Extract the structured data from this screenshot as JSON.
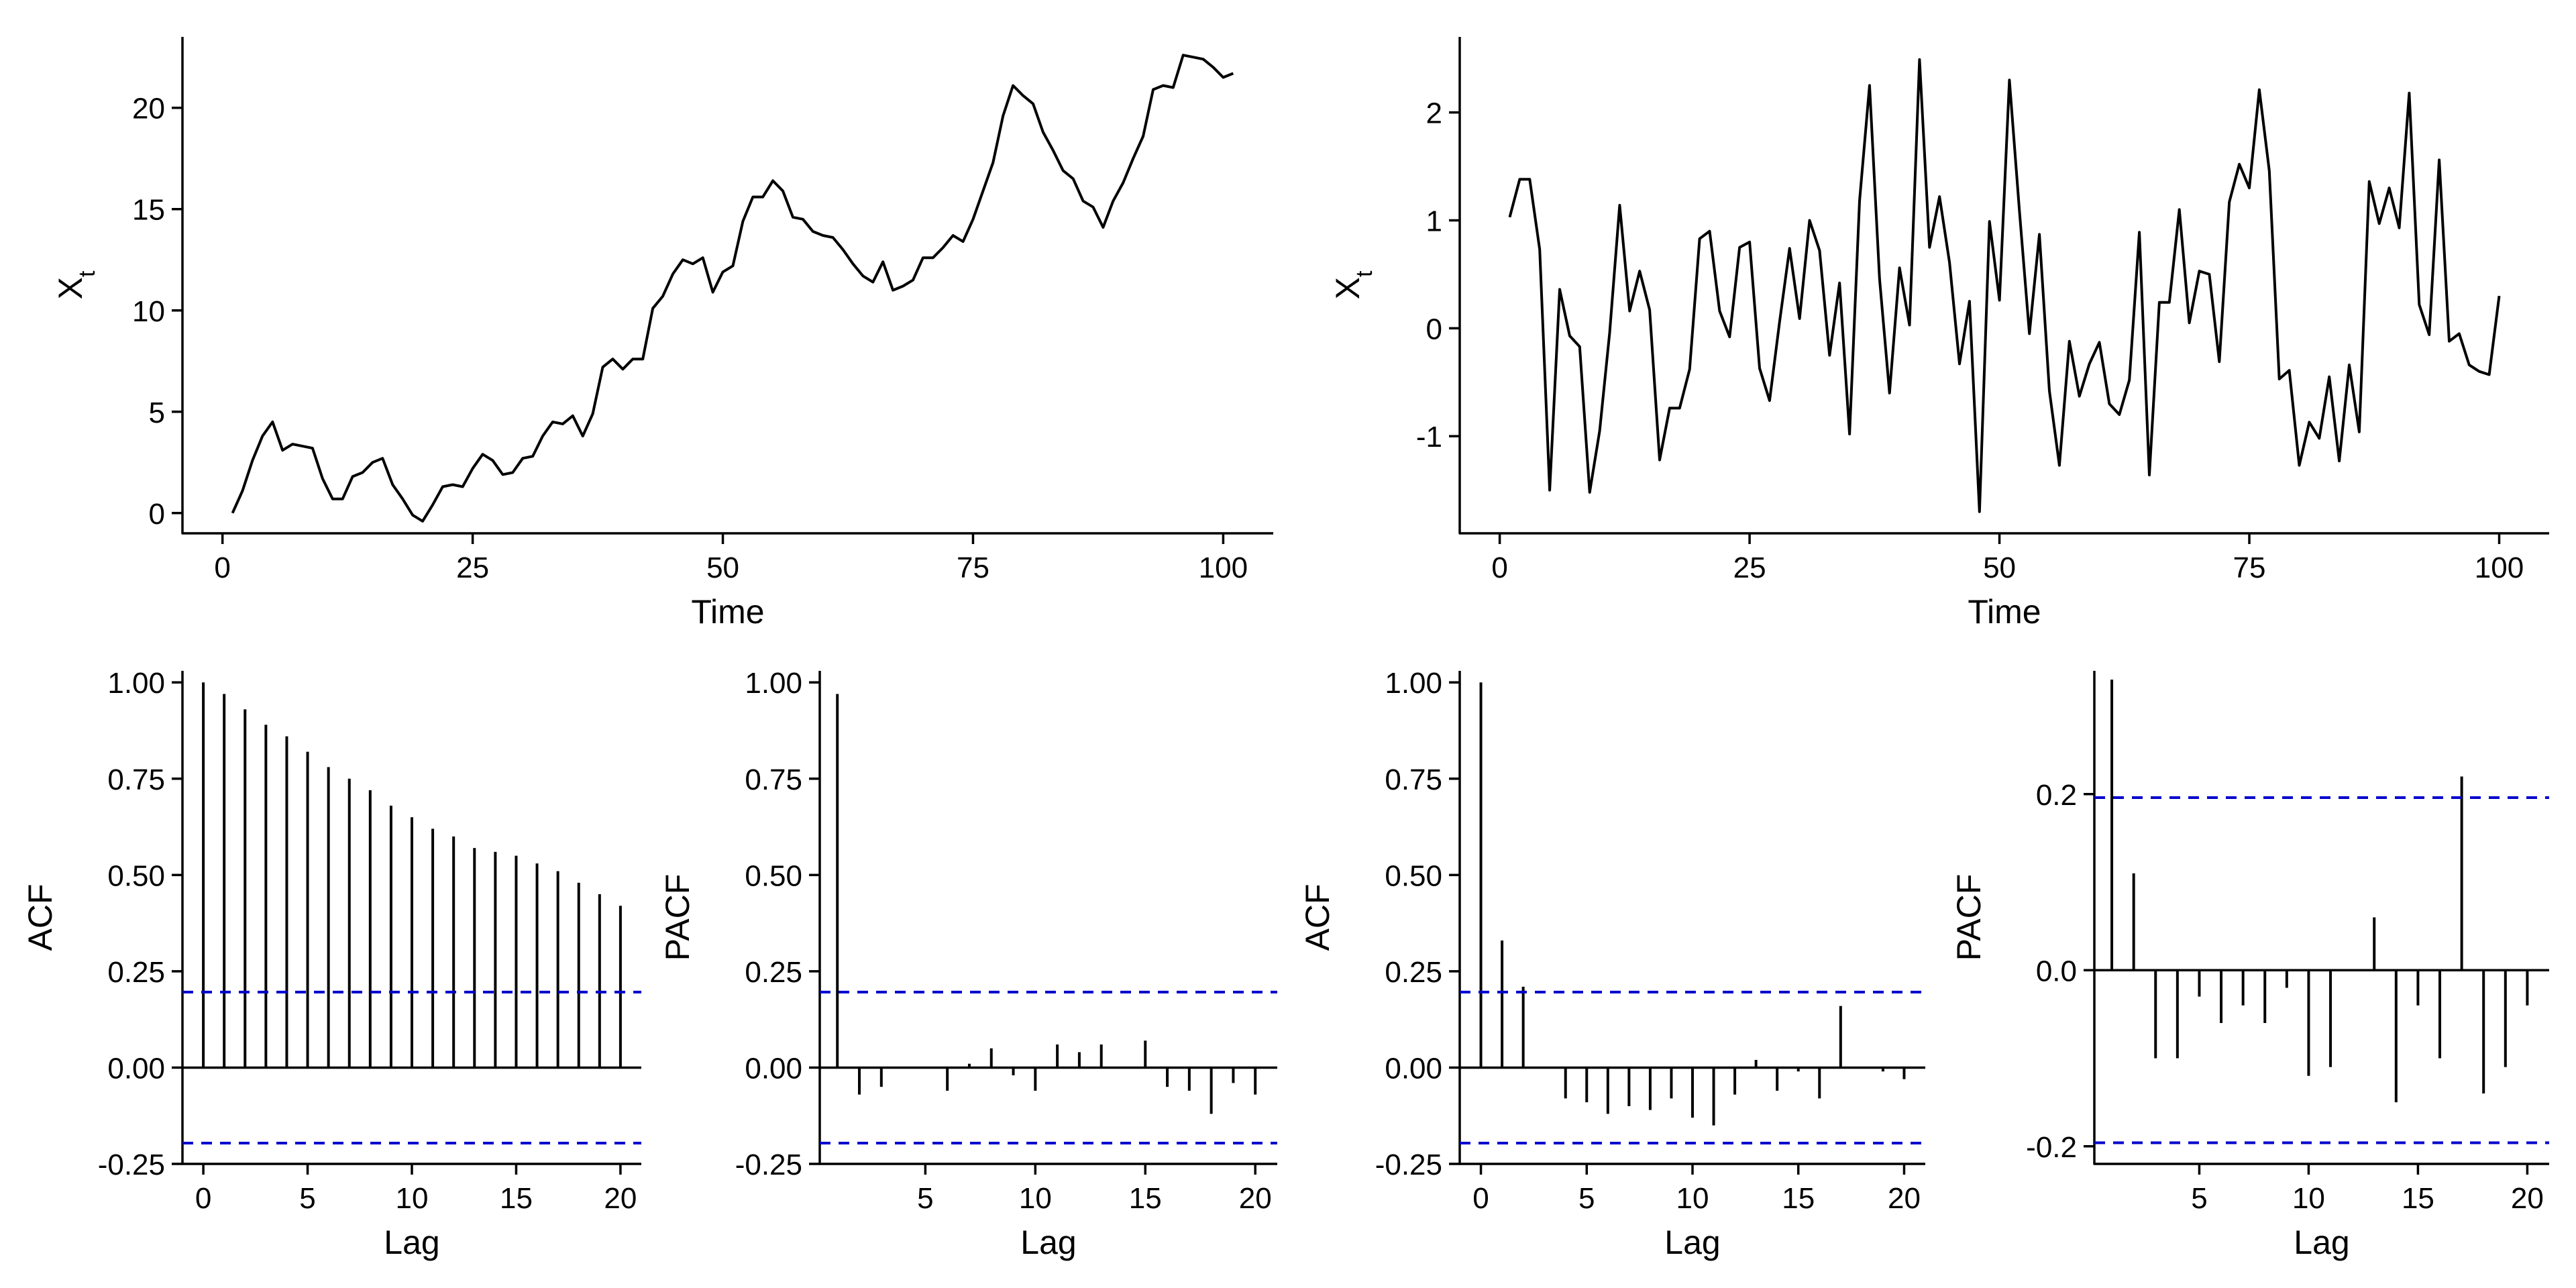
{
  "chart_data": [
    {
      "type": "line",
      "panel": "top-left",
      "xlabel": "Time",
      "ylabel": "X",
      "ylabel_sub": "t",
      "xlim": [
        -4,
        105
      ],
      "ylim": [
        -1,
        23.5
      ],
      "xticks": [
        0,
        25,
        50,
        75,
        100
      ],
      "yticks": [
        0,
        5,
        10,
        15,
        20
      ],
      "x": [
        1,
        2,
        3,
        4,
        5,
        6,
        7,
        8,
        9,
        10,
        11,
        12,
        13,
        14,
        15,
        16,
        17,
        18,
        19,
        20,
        21,
        22,
        23,
        24,
        25,
        26,
        27,
        28,
        29,
        30,
        31,
        32,
        33,
        34,
        35,
        36,
        37,
        38,
        39,
        40,
        41,
        42,
        43,
        44,
        45,
        46,
        47,
        48,
        49,
        50,
        51,
        52,
        53,
        54,
        55,
        56,
        57,
        58,
        59,
        60,
        61,
        62,
        63,
        64,
        65,
        66,
        67,
        68,
        69,
        70,
        71,
        72,
        73,
        74,
        75,
        76,
        77,
        78,
        79,
        80,
        81,
        82,
        83,
        84,
        85,
        86,
        87,
        88,
        89,
        90,
        91,
        92,
        93,
        94,
        95,
        96,
        97,
        98,
        99,
        100,
        101
      ],
      "y": [
        0.0,
        1.1,
        2.6,
        3.8,
        4.5,
        3.1,
        3.4,
        3.3,
        3.2,
        1.7,
        0.7,
        0.7,
        1.8,
        2.0,
        2.5,
        2.7,
        1.4,
        0.7,
        -0.1,
        -0.4,
        0.4,
        1.3,
        1.4,
        1.3,
        2.2,
        2.9,
        2.6,
        1.9,
        2.0,
        2.7,
        2.8,
        3.8,
        4.5,
        4.4,
        4.8,
        3.8,
        4.9,
        7.2,
        7.6,
        7.1,
        7.6,
        7.6,
        10.1,
        10.7,
        11.8,
        12.5,
        12.3,
        12.6,
        10.9,
        11.9,
        12.2,
        14.4,
        15.6,
        15.6,
        16.4,
        15.9,
        14.6,
        14.5,
        13.9,
        13.7,
        13.6,
        13.0,
        12.3,
        11.7,
        11.4,
        12.4,
        11.0,
        11.2,
        11.5,
        12.6,
        12.6,
        13.1,
        13.7,
        13.4,
        14.5,
        15.9,
        17.3,
        19.6,
        21.1,
        20.6,
        20.2,
        18.8,
        17.9,
        16.9,
        16.5,
        15.4,
        15.1,
        14.1,
        15.4,
        16.3,
        17.5,
        18.6,
        20.9,
        21.1,
        21.0,
        22.6,
        22.5,
        22.4,
        22.0,
        21.5,
        21.7
      ]
    },
    {
      "type": "line",
      "panel": "top-right",
      "xlabel": "Time",
      "ylabel": "X",
      "ylabel_sub": "t",
      "xlim": [
        -4,
        105
      ],
      "ylim": [
        -1.9,
        2.7
      ],
      "xticks": [
        0,
        25,
        50,
        75,
        100
      ],
      "yticks": [
        -1,
        0,
        1,
        2
      ],
      "x": [
        1,
        2,
        3,
        4,
        5,
        6,
        7,
        8,
        9,
        10,
        11,
        12,
        13,
        14,
        15,
        16,
        17,
        18,
        19,
        20,
        21,
        22,
        23,
        24,
        25,
        26,
        27,
        28,
        29,
        30,
        31,
        32,
        33,
        34,
        35,
        36,
        37,
        38,
        39,
        40,
        41,
        42,
        43,
        44,
        45,
        46,
        47,
        48,
        49,
        50,
        51,
        52,
        53,
        54,
        55,
        56,
        57,
        58,
        59,
        60,
        61,
        62,
        63,
        64,
        65,
        66,
        67,
        68,
        69,
        70,
        71,
        72,
        73,
        74,
        75,
        76,
        77,
        78,
        79,
        80,
        81,
        82,
        83,
        84,
        85,
        86,
        87,
        88,
        89,
        90,
        91,
        92,
        93,
        94,
        95,
        96,
        97,
        98,
        99,
        100
      ],
      "y": [
        1.03,
        1.38,
        1.38,
        0.73,
        -1.5,
        0.36,
        -0.07,
        -0.17,
        -1.52,
        -0.95,
        -0.04,
        1.14,
        0.16,
        0.53,
        0.17,
        -1.22,
        -0.74,
        -0.74,
        -0.38,
        0.83,
        0.9,
        0.16,
        -0.08,
        0.75,
        0.8,
        -0.37,
        -0.67,
        0.06,
        0.74,
        0.09,
        1.0,
        0.72,
        -0.25,
        0.42,
        -0.98,
        1.18,
        2.25,
        0.46,
        -0.6,
        0.56,
        0.03,
        2.49,
        0.75,
        1.22,
        0.61,
        -0.33,
        0.25,
        -1.7,
        0.99,
        0.26,
        2.3,
        1.09,
        -0.05,
        0.87,
        -0.58,
        -1.27,
        -0.12,
        -0.63,
        -0.33,
        -0.13,
        -0.7,
        -0.8,
        -0.48,
        0.89,
        -1.36,
        0.24,
        0.24,
        1.1,
        0.05,
        0.53,
        0.5,
        -0.31,
        1.17,
        1.52,
        1.3,
        2.21,
        1.46,
        -0.47,
        -0.39,
        -1.27,
        -0.87,
        -1.02,
        -0.45,
        -1.23,
        -0.34,
        -0.96,
        1.36,
        0.97,
        1.3,
        0.93,
        2.18,
        0.22,
        -0.06,
        1.56,
        -0.12,
        -0.05,
        -0.34,
        -0.4,
        -0.43,
        0.3
      ]
    },
    {
      "type": "bar",
      "panel": "bottom-1",
      "xlabel": "Lag",
      "ylabel": "ACF",
      "xlim": [
        -1,
        21
      ],
      "ylim": [
        -0.25,
        1.03
      ],
      "xticks": [
        0,
        5,
        10,
        15,
        20
      ],
      "yticks": [
        -0.25,
        0.0,
        0.25,
        0.5,
        0.75,
        1.0
      ],
      "ytick_labels": [
        "-0.25",
        "0.00",
        "0.25",
        "0.50",
        "0.75",
        "1.00"
      ],
      "ci": 0.196,
      "lags": [
        0,
        1,
        2,
        3,
        4,
        5,
        6,
        7,
        8,
        9,
        10,
        11,
        12,
        13,
        14,
        15,
        16,
        17,
        18,
        19,
        20
      ],
      "values": [
        1.0,
        0.97,
        0.93,
        0.89,
        0.86,
        0.82,
        0.78,
        0.75,
        0.72,
        0.68,
        0.65,
        0.62,
        0.6,
        0.57,
        0.56,
        0.55,
        0.53,
        0.51,
        0.48,
        0.45,
        0.42
      ]
    },
    {
      "type": "bar",
      "panel": "bottom-2",
      "xlabel": "Lag",
      "ylabel": "PACF",
      "xlim": [
        0.2,
        21
      ],
      "ylim": [
        -0.25,
        1.03
      ],
      "xticks": [
        5,
        10,
        15,
        20
      ],
      "yticks": [
        -0.25,
        0.0,
        0.25,
        0.5,
        0.75,
        1.0
      ],
      "ytick_labels": [
        "-0.25",
        "0.00",
        "0.25",
        "0.50",
        "0.75",
        "1.00"
      ],
      "ci": 0.196,
      "lags": [
        1,
        2,
        3,
        4,
        5,
        6,
        7,
        8,
        9,
        10,
        11,
        12,
        13,
        14,
        15,
        16,
        17,
        18,
        19,
        20
      ],
      "values": [
        0.97,
        -0.07,
        -0.05,
        0.0,
        0.0,
        -0.06,
        0.01,
        0.05,
        -0.02,
        -0.06,
        0.06,
        0.04,
        0.06,
        0.0,
        0.07,
        -0.05,
        -0.06,
        -0.12,
        -0.04,
        -0.07
      ]
    },
    {
      "type": "bar",
      "panel": "bottom-3",
      "xlabel": "Lag",
      "ylabel": "ACF",
      "xlim": [
        -1,
        21
      ],
      "ylim": [
        -0.25,
        1.03
      ],
      "xticks": [
        0,
        5,
        10,
        15,
        20
      ],
      "yticks": [
        -0.25,
        0.0,
        0.25,
        0.5,
        0.75,
        1.0
      ],
      "ytick_labels": [
        "-0.25",
        "0.00",
        "0.25",
        "0.50",
        "0.75",
        "1.00"
      ],
      "ci": 0.196,
      "lags": [
        0,
        1,
        2,
        3,
        4,
        5,
        6,
        7,
        8,
        9,
        10,
        11,
        12,
        13,
        14,
        15,
        16,
        17,
        18,
        19,
        20
      ],
      "values": [
        1.0,
        0.33,
        0.21,
        0.0,
        -0.08,
        -0.09,
        -0.12,
        -0.1,
        -0.11,
        -0.08,
        -0.13,
        -0.15,
        -0.07,
        0.02,
        -0.06,
        -0.01,
        -0.08,
        0.16,
        0.0,
        -0.01,
        -0.03
      ]
    },
    {
      "type": "bar",
      "panel": "bottom-4",
      "xlabel": "Lag",
      "ylabel": "PACF",
      "xlim": [
        0.2,
        21
      ],
      "ylim": [
        -0.22,
        0.34
      ],
      "xticks": [
        5,
        10,
        15,
        20
      ],
      "yticks": [
        -0.2,
        0.0,
        0.2
      ],
      "ytick_labels": [
        "-0.2",
        "0.0",
        "0.2"
      ],
      "ci": 0.196,
      "lags": [
        1,
        2,
        3,
        4,
        5,
        6,
        7,
        8,
        9,
        10,
        11,
        12,
        13,
        14,
        15,
        16,
        17,
        18,
        19,
        20
      ],
      "values": [
        0.33,
        0.11,
        -0.1,
        -0.1,
        -0.03,
        -0.06,
        -0.04,
        -0.06,
        -0.02,
        -0.12,
        -0.11,
        0.0,
        0.06,
        -0.15,
        -0.04,
        -0.1,
        0.22,
        -0.14,
        -0.11,
        -0.04
      ]
    }
  ]
}
